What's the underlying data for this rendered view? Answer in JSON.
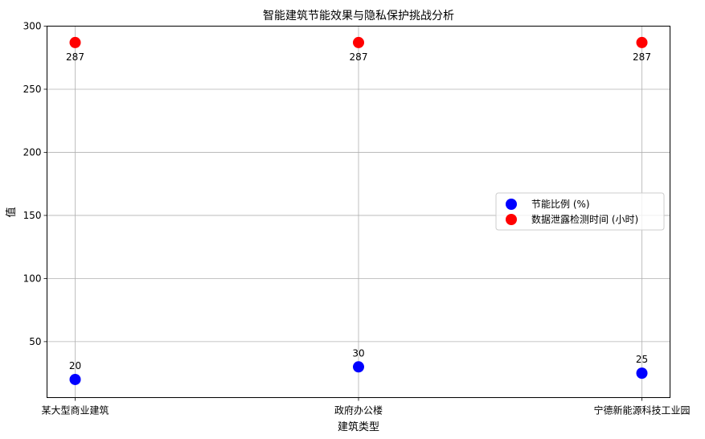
{
  "chart_data": {
    "type": "scatter",
    "title": "智能建筑节能效果与隐私保护挑战分析",
    "xlabel": "建筑类型",
    "ylabel": "值",
    "categories": [
      "某大型商业建筑",
      "政府办公楼",
      "宁德新能源科技工业园"
    ],
    "series": [
      {
        "name": "节能比例 (%)",
        "color": "#0000ff",
        "values": [
          20,
          30,
          25
        ]
      },
      {
        "name": "数据泄露检测时间 (小时)",
        "color": "#ff0000",
        "values": [
          287,
          287,
          287
        ]
      }
    ],
    "ylim": [
      5.65,
      300
    ],
    "yticks": [
      50,
      100,
      150,
      200,
      250,
      300
    ],
    "grid": true,
    "legend": "center-right"
  }
}
